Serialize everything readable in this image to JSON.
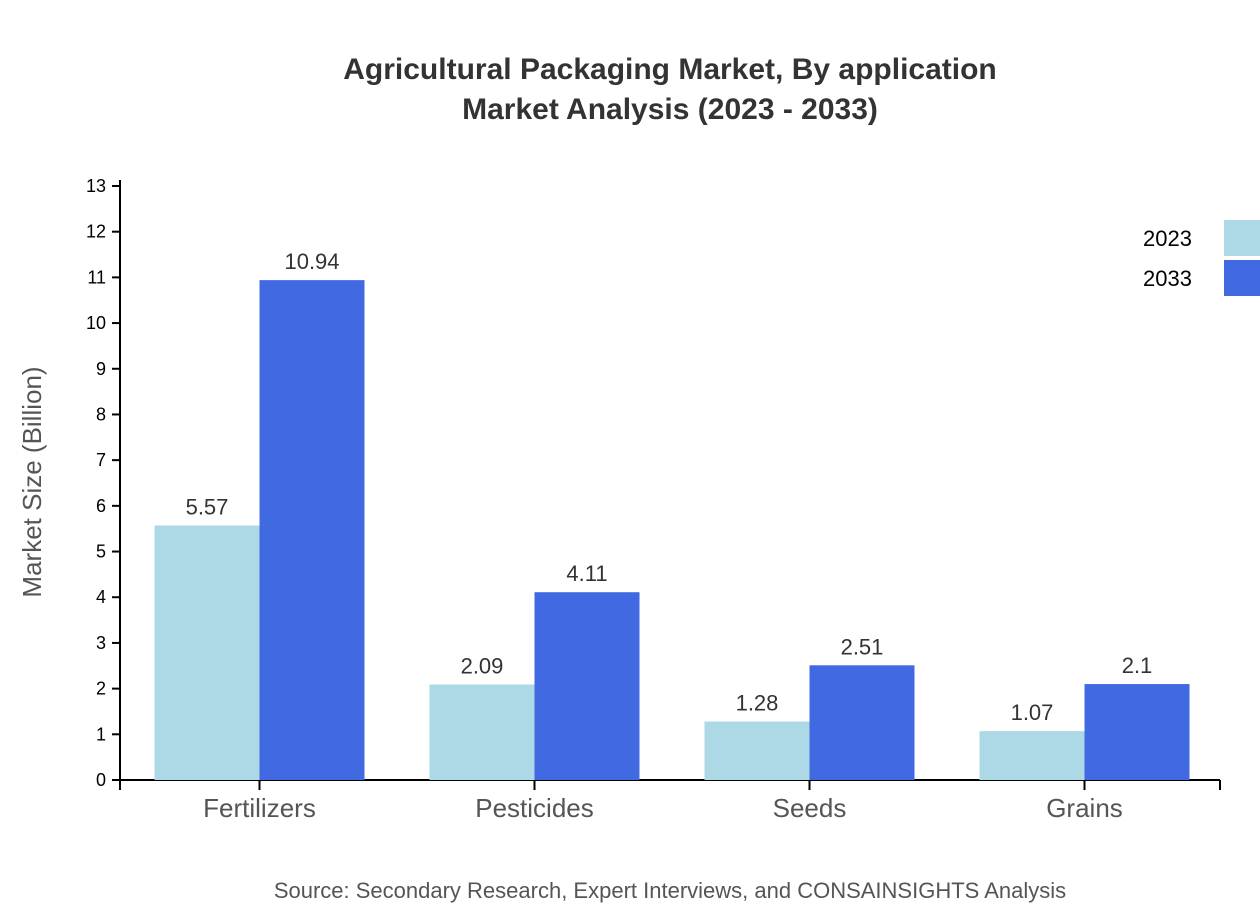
{
  "chart_data": {
    "type": "bar",
    "title": "Agricultural Packaging Market, By application",
    "subtitle": "Market Analysis (2023 - 2033)",
    "xlabel": "",
    "ylabel": "Market Size (Billion)",
    "categories": [
      "Fertilizers",
      "Pesticides",
      "Seeds",
      "Grains"
    ],
    "series": [
      {
        "name": "2023",
        "color": "#add8e6",
        "values": [
          5.57,
          2.09,
          1.28,
          1.07
        ]
      },
      {
        "name": "2033",
        "color": "#4169e1",
        "values": [
          10.94,
          4.11,
          2.51,
          2.1
        ]
      }
    ],
    "ylim": [
      0,
      13
    ],
    "yticks": [
      0,
      1,
      2,
      3,
      4,
      5,
      6,
      7,
      8,
      9,
      10,
      11,
      12,
      13
    ],
    "grid": false,
    "legend_position": "top-right",
    "source": "Source: Secondary Research, Expert Interviews, and CONSAINSIGHTS Analysis"
  }
}
